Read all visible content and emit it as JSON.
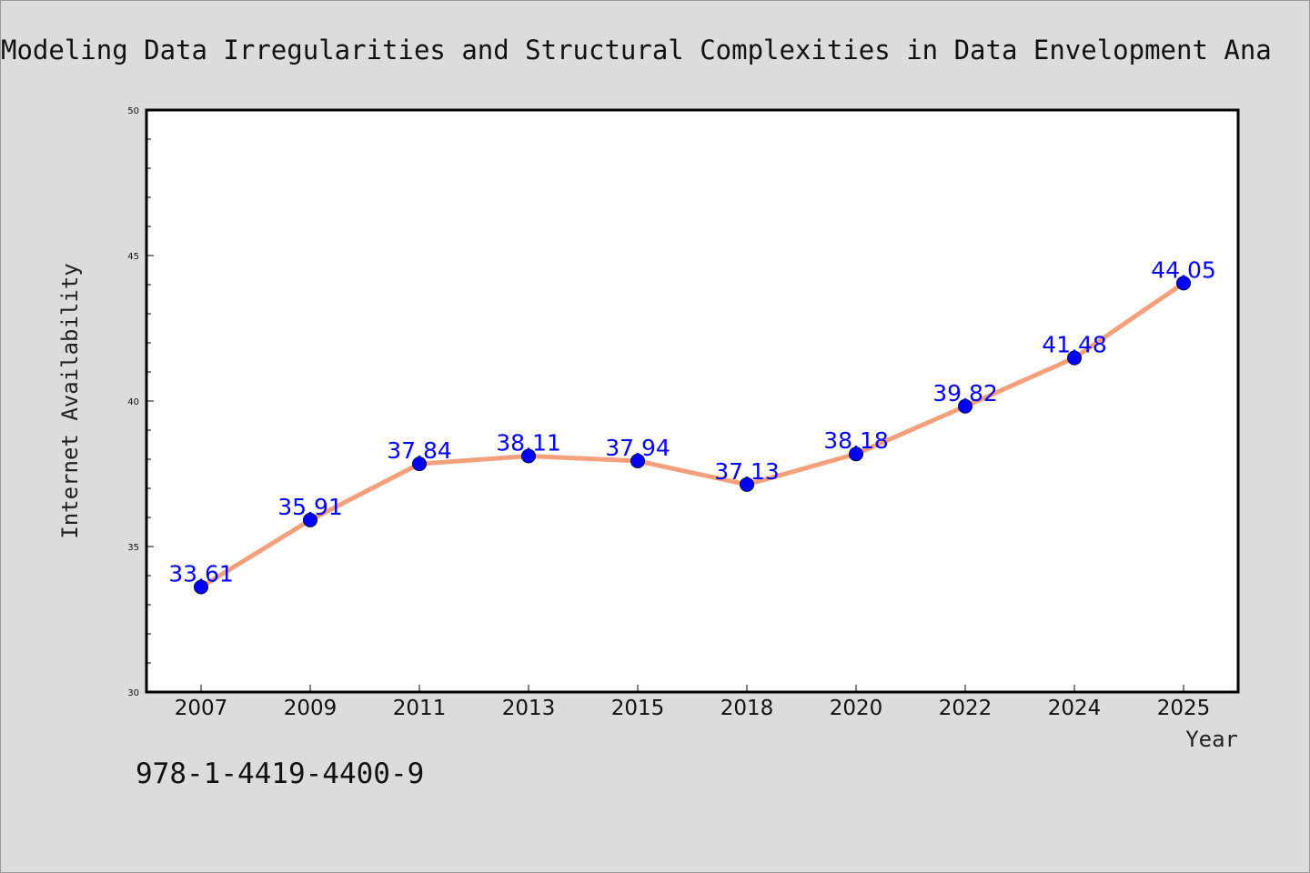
{
  "chart_data": {
    "type": "line",
    "title": "Modeling Data Irregularities and Structural Complexities in Data Envelopment Ana",
    "xlabel": "Year",
    "ylabel": "Internet Availability",
    "categories": [
      "2007",
      "2009",
      "2011",
      "2013",
      "2015",
      "2018",
      "2020",
      "2022",
      "2024",
      "2025"
    ],
    "series": [
      {
        "values": [
          33.61,
          35.91,
          37.84,
          38.11,
          37.94,
          37.13,
          38.18,
          39.82,
          41.48,
          44.05
        ]
      }
    ],
    "data_labels": [
      "33.61",
      "35.91",
      "37.84",
      "38.11",
      "37.94",
      "37.13",
      "38.18",
      "39.82",
      "41.48",
      "44.05"
    ],
    "ylim": [
      30,
      50
    ],
    "yticks": [
      30,
      35,
      40,
      45,
      50
    ],
    "grid": false,
    "legend": "none",
    "line_color": "#f4a07c",
    "marker_color": "#0000ff",
    "label_color": "#0000ff"
  },
  "footer": {
    "isbn": "978-1-4419-4400-9"
  }
}
